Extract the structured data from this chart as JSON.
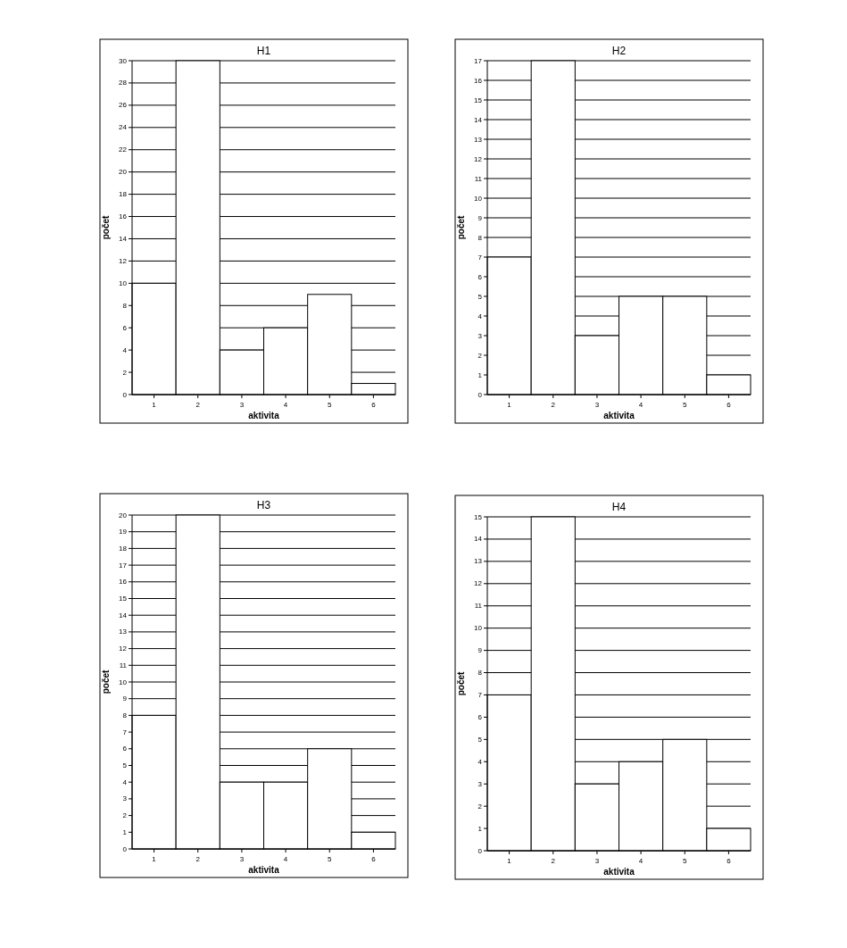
{
  "chart_data": [
    {
      "type": "bar",
      "title": "H1",
      "xlabel": "aktivita",
      "ylabel": "počet",
      "categories": [
        "1",
        "2",
        "3",
        "4",
        "5",
        "6"
      ],
      "values": [
        10,
        30,
        4,
        6,
        9,
        1
      ],
      "color": "#ffffff",
      "ylim": [
        0,
        30
      ],
      "yticks": [
        0,
        2,
        4,
        6,
        8,
        10,
        12,
        14,
        16,
        18,
        20,
        22,
        24,
        26,
        28,
        30
      ],
      "grid": "y"
    },
    {
      "type": "bar",
      "title": "H2",
      "xlabel": "aktivita",
      "ylabel": "počet",
      "categories": [
        "1",
        "2",
        "3",
        "4",
        "5",
        "6"
      ],
      "values": [
        7,
        17,
        3,
        5,
        5,
        1
      ],
      "color": "#ffffff",
      "ylim": [
        0,
        17
      ],
      "yticks": [
        0,
        1,
        2,
        3,
        4,
        5,
        6,
        7,
        8,
        9,
        10,
        11,
        12,
        13,
        14,
        15,
        16,
        17
      ],
      "grid": "y"
    },
    {
      "type": "bar",
      "title": "H3",
      "xlabel": "aktivita",
      "ylabel": "počet",
      "categories": [
        "1",
        "2",
        "3",
        "4",
        "5",
        "6"
      ],
      "values": [
        8,
        20,
        4,
        4,
        6,
        1
      ],
      "color": "#ffffff",
      "ylim": [
        0,
        20
      ],
      "yticks": [
        0,
        1,
        2,
        3,
        4,
        5,
        6,
        7,
        8,
        9,
        10,
        11,
        12,
        13,
        14,
        15,
        16,
        17,
        18,
        19,
        20
      ],
      "grid": "y"
    },
    {
      "type": "bar",
      "title": "H4",
      "xlabel": "aktivita",
      "ylabel": "počet",
      "categories": [
        "1",
        "2",
        "3",
        "4",
        "5",
        "6"
      ],
      "values": [
        7,
        15,
        3,
        4,
        5,
        1
      ],
      "color": "#ffffff",
      "ylim": [
        0,
        15
      ],
      "yticks": [
        0,
        1,
        2,
        3,
        4,
        5,
        6,
        7,
        8,
        9,
        10,
        11,
        12,
        13,
        14,
        15
      ],
      "grid": "y"
    }
  ]
}
